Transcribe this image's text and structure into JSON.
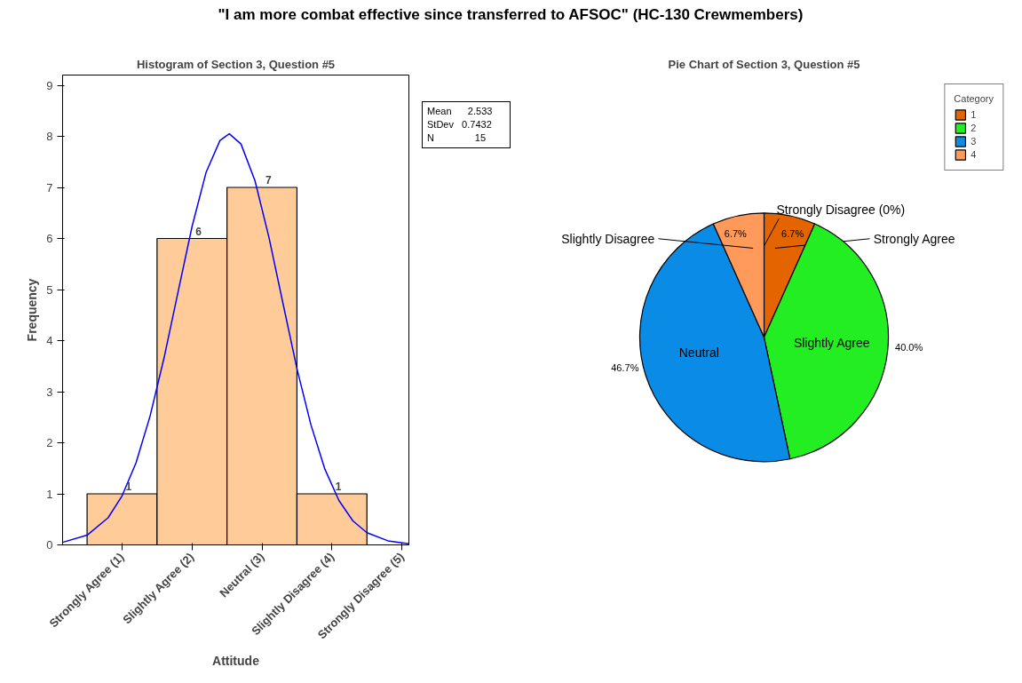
{
  "chart_data": [
    {
      "type": "histogram",
      "title": "\"I am more combat effective since transferred to AFSOC\" (HC-130 Crewmembers)",
      "subtitle": "Histogram of Section 3, Question #5",
      "xlabel": "Attitude",
      "ylabel": "Frequency",
      "series": [
        {
          "type": "histogram",
          "bins": [
            0.5,
            1.5,
            2.5,
            3.5,
            4.5
          ],
          "values": [
            1,
            6,
            7,
            1
          ],
          "value_labels": [
            "1",
            "6",
            "7",
            "1"
          ],
          "color": "#ffcc99"
        },
        {
          "type": "line",
          "color": "#0000ff",
          "x": [
            0.15,
            0.5,
            0.8,
            1.0,
            1.2,
            1.4,
            1.6,
            1.8,
            2.0,
            2.2,
            2.4,
            2.533,
            2.7,
            2.9,
            3.1,
            3.3,
            3.5,
            3.7,
            3.9,
            4.1,
            4.3,
            4.5,
            4.8,
            5.1
          ],
          "values": [
            0.05,
            0.19,
            0.53,
            0.96,
            1.61,
            2.52,
            3.66,
            4.95,
            6.23,
            7.29,
            7.92,
            8.05,
            7.85,
            7.13,
            6.02,
            4.73,
            3.45,
            2.35,
            1.48,
            0.87,
            0.47,
            0.24,
            0.08,
            0.02
          ]
        }
      ],
      "xlim": [
        0.15,
        5.1
      ],
      "ylim": [
        0,
        9.2
      ],
      "xticks": [
        {
          "value": 1,
          "label": "Strongly Agree (1)"
        },
        {
          "value": 2,
          "label": "Slightly Agree (2)"
        },
        {
          "value": 3,
          "label": "Neutral (3)"
        },
        {
          "value": 4,
          "label": "Slightly Disagree (4)"
        },
        {
          "value": 5,
          "label": "Strongly Disagree (5)"
        }
      ],
      "yticks": [
        0,
        1,
        2,
        3,
        4,
        5,
        6,
        7,
        8,
        9
      ],
      "grid": false,
      "annotations": [
        "Mean      2.533",
        "StDev   0.7432",
        "N               15"
      ]
    },
    {
      "type": "pie",
      "title": "Pie Chart of Section 3, Question #5",
      "categories": [
        "1",
        "2",
        "3",
        "4"
      ],
      "values": [
        6.7,
        40.0,
        46.7,
        6.7
      ],
      "colors": [
        "#e46400",
        "#22ee22",
        "#0a8ce6",
        "#ff9a5a"
      ],
      "value_labels": [
        "6.7%",
        "40.0%",
        "46.7%",
        "6.7%"
      ],
      "legend": "top right",
      "legend_title": "Category",
      "annotations": [
        "Strongly Agree",
        "Slightly Agree",
        "Neutral",
        "Slightly Disagree",
        "Strongly Disagree (0%)"
      ]
    }
  ]
}
